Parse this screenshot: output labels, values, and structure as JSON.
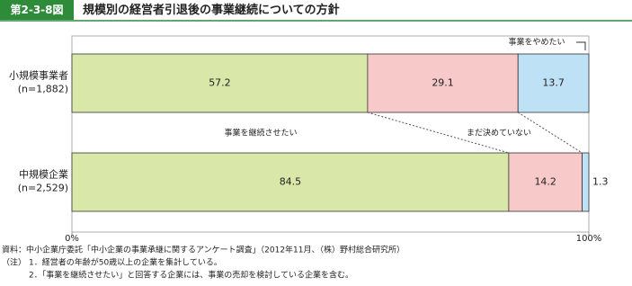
{
  "chart_data": {
    "type": "stacked_bar_horizontal",
    "figure_number": "第2-3-8図",
    "title": "規模別の経営者引退後の事業継続についての方針",
    "categories": [
      "小規模事業者",
      "中規模企業"
    ],
    "category_notes": [
      "(n=1,882)",
      "(n=2,529)"
    ],
    "series": [
      {
        "name": "事業を継続させたい",
        "color": "#d9e7a9",
        "values": [
          57.2,
          84.5
        ]
      },
      {
        "name": "まだ決めていない",
        "color": "#f7c9c9",
        "values": [
          29.1,
          14.2
        ]
      },
      {
        "name": "事業をやめたい",
        "color": "#bfe1f6",
        "values": [
          13.7,
          1.3
        ]
      }
    ],
    "xlim": [
      0,
      100
    ],
    "xticks": [
      {
        "value": 0,
        "label": "0%"
      },
      {
        "value": 100,
        "label": "100%"
      }
    ],
    "source": "資料：中小企業庁委託「中小企業の事業承継に関するアンケート調査」（2012年11月、（株）野村総合研究所）",
    "notes_label": "（注）",
    "notes": [
      "1．経営者の年齢が50歳以上の企業を集計している。",
      "2．「事業を継続させたい」と回答する企業には、事業の売却を検討している企業を含む。"
    ]
  }
}
